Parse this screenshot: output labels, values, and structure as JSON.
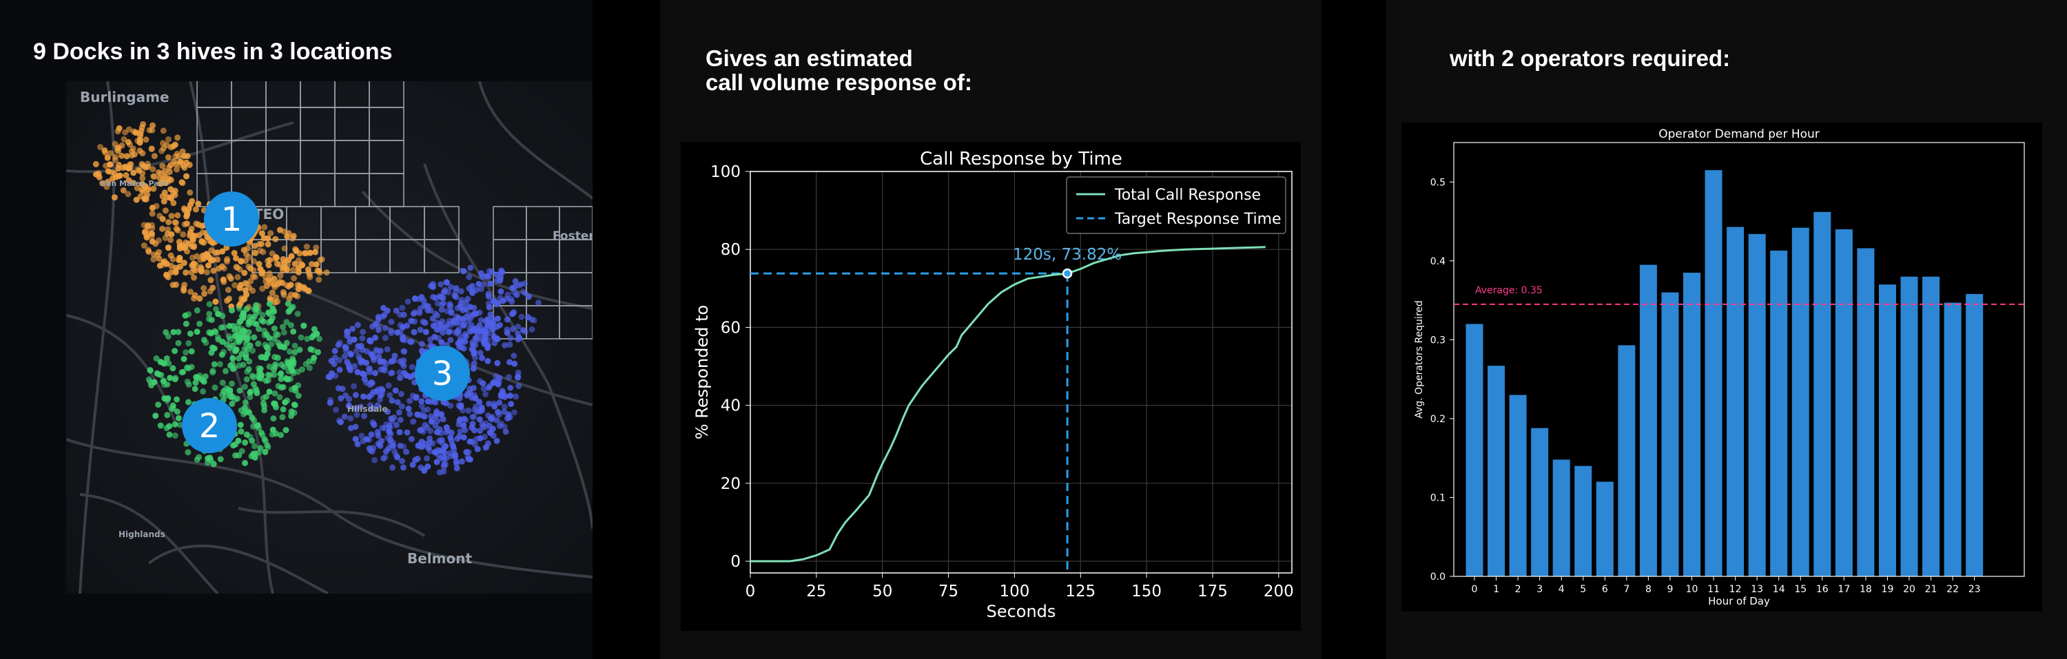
{
  "panel1": {
    "heading": "9 Docks in 3 hives in 3 locations",
    "map": {
      "place_labels": [
        "Burlingame",
        "San Mateo Park",
        "ATEO",
        "Foster",
        "Highlands",
        "Belmont",
        "Hillsdale"
      ],
      "hives": [
        {
          "number": "1",
          "color": "#f0a040"
        },
        {
          "number": "2",
          "color": "#40d070"
        },
        {
          "number": "3",
          "color": "#5060e8"
        }
      ],
      "badge_color": "#1a8fe0"
    }
  },
  "panel2": {
    "heading": "Gives an estimated\ncall volume response of:",
    "chart_data": {
      "type": "line",
      "title": "Call Response by Time",
      "xlabel": "Seconds",
      "ylabel": "% Responded to",
      "xlim": [
        0,
        205
      ],
      "ylim": [
        -3,
        100
      ],
      "xticks": [
        "0",
        "25",
        "50",
        "75",
        "100",
        "125",
        "150",
        "175",
        "200"
      ],
      "yticks": [
        "0",
        "20",
        "40",
        "60",
        "80",
        "100"
      ],
      "grid": true,
      "legend_position": "top-right",
      "series": [
        {
          "name": "Total Call Response",
          "color": "#7fe0b8",
          "x": [
            0,
            15,
            20,
            25,
            30,
            33,
            36,
            40,
            45,
            48,
            50,
            53,
            55,
            58,
            60,
            65,
            70,
            75,
            78,
            80,
            85,
            90,
            95,
            100,
            105,
            110,
            115,
            120,
            125,
            130,
            135,
            140,
            145,
            150,
            155,
            160,
            165,
            170,
            175,
            180,
            185,
            190,
            195
          ],
          "y": [
            0,
            0,
            0.5,
            1.5,
            3,
            7,
            10,
            13,
            17,
            22,
            25,
            29,
            32,
            37,
            40,
            45,
            49,
            53,
            55,
            58,
            62,
            66,
            69,
            71,
            72.5,
            73,
            73.5,
            73.82,
            75,
            76.5,
            77.5,
            78.5,
            79,
            79.3,
            79.6,
            79.8,
            80,
            80.1,
            80.2,
            80.3,
            80.4,
            80.5,
            80.6
          ]
        },
        {
          "name": "Target Response Time",
          "color": "#2b9fe8",
          "style": "dashed",
          "x": 120,
          "y": 73.82
        }
      ],
      "annotation": {
        "text": "120s, 73.82%",
        "x": 120,
        "y": 73.82,
        "color": "#5ab4e8"
      }
    }
  },
  "panel3": {
    "heading": "with 2 operators required:",
    "chart_data": {
      "type": "bar",
      "title": "Operator Demand per Hour",
      "xlabel": "Hour of Day",
      "ylabel": "Avg. Operators Required",
      "ylim": [
        0,
        0.55
      ],
      "yticks": [
        "0.0",
        "0.1",
        "0.2",
        "0.3",
        "0.4",
        "0.5"
      ],
      "grid": false,
      "bar_color": "#2d87d4",
      "categories": [
        "0",
        "1",
        "2",
        "3",
        "4",
        "5",
        "6",
        "7",
        "8",
        "9",
        "10",
        "11",
        "12",
        "13",
        "14",
        "15",
        "16",
        "17",
        "18",
        "19",
        "20",
        "21",
        "22",
        "23"
      ],
      "values": [
        0.32,
        0.267,
        0.23,
        0.188,
        0.148,
        0.14,
        0.12,
        0.293,
        0.395,
        0.36,
        0.385,
        0.515,
        0.443,
        0.434,
        0.413,
        0.442,
        0.462,
        0.44,
        0.416,
        0.37,
        0.38,
        0.38,
        0.347,
        0.358
      ],
      "average": {
        "value": 0.345,
        "label": "Average: 0.35",
        "color": "#ff3a8c"
      }
    }
  }
}
